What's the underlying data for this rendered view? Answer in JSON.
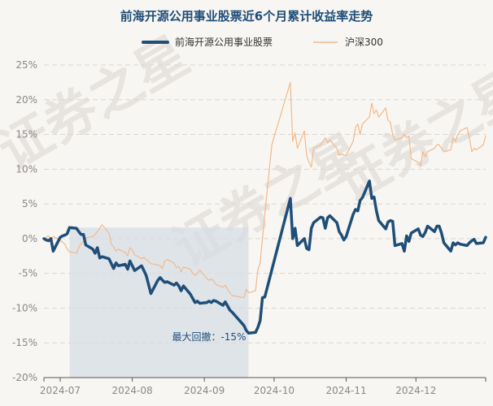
{
  "chart_data": {
    "type": "line",
    "title": "前海开源公用事业股票近6个月累计收益率走势",
    "legend": [
      {
        "name": "前海开源公用事业股票",
        "color": "#1f4e79"
      },
      {
        "name": "沪深300",
        "color": "#f2b98a"
      }
    ],
    "legend_position": "top-center",
    "grid": true,
    "ylim": [
      -20,
      25
    ],
    "yticks": [
      -20,
      -15,
      -10,
      -5,
      0,
      5,
      10,
      15,
      20,
      25
    ],
    "ytick_labels": [
      "-20%",
      "-15%",
      "-10%",
      "-5%",
      "0%",
      "5%",
      "10%",
      "15%",
      "20%",
      "25%"
    ],
    "x_range": [
      "2024-06-24",
      "2024-12-31"
    ],
    "x_tick_labels": [
      "2024-07",
      "2024-08",
      "2024-09",
      "2024-10",
      "2024-11",
      "2024-12"
    ],
    "x_tick_dates": [
      "2024-07-01",
      "2024-08-01",
      "2024-09-01",
      "2024-10-01",
      "2024-11-01",
      "2024-12-01"
    ],
    "series": [
      {
        "name": "前海开源公用事业股票",
        "color": "#1f4e79",
        "points": [
          [
            "2024-06-24",
            0.0
          ],
          [
            "2024-06-25",
            -0.2
          ],
          [
            "2024-06-26",
            -0.3
          ],
          [
            "2024-06-27",
            0.0
          ],
          [
            "2024-06-28",
            -1.8
          ],
          [
            "2024-07-01",
            0.2
          ],
          [
            "2024-07-02",
            0.4
          ],
          [
            "2024-07-03",
            0.5
          ],
          [
            "2024-07-04",
            0.7
          ],
          [
            "2024-07-05",
            1.6
          ],
          [
            "2024-07-08",
            1.5
          ],
          [
            "2024-07-09",
            1.0
          ],
          [
            "2024-07-10",
            0.6
          ],
          [
            "2024-07-11",
            0.6
          ],
          [
            "2024-07-12",
            -0.9
          ],
          [
            "2024-07-15",
            -1.5
          ],
          [
            "2024-07-16",
            -2.1
          ],
          [
            "2024-07-17",
            -1.3
          ],
          [
            "2024-07-18",
            -2.8
          ],
          [
            "2024-07-19",
            -2.6
          ],
          [
            "2024-07-22",
            -2.9
          ],
          [
            "2024-07-23",
            -3.6
          ],
          [
            "2024-07-24",
            -4.3
          ],
          [
            "2024-07-25",
            -3.5
          ],
          [
            "2024-07-26",
            -3.9
          ],
          [
            "2024-07-29",
            -3.7
          ],
          [
            "2024-07-30",
            -4.4
          ],
          [
            "2024-07-31",
            -3.2
          ],
          [
            "2024-08-01",
            -3.9
          ],
          [
            "2024-08-02",
            -4.6
          ],
          [
            "2024-08-05",
            -3.9
          ],
          [
            "2024-08-06",
            -4.6
          ],
          [
            "2024-08-07",
            -5.3
          ],
          [
            "2024-08-08",
            -6.6
          ],
          [
            "2024-08-09",
            -7.9
          ],
          [
            "2024-08-12",
            -6.0
          ],
          [
            "2024-08-13",
            -5.6
          ],
          [
            "2024-08-14",
            -6.0
          ],
          [
            "2024-08-15",
            -6.3
          ],
          [
            "2024-08-16",
            -6.2
          ],
          [
            "2024-08-19",
            -6.7
          ],
          [
            "2024-08-20",
            -6.4
          ],
          [
            "2024-08-21",
            -6.8
          ],
          [
            "2024-08-22",
            -7.5
          ],
          [
            "2024-08-23",
            -6.8
          ],
          [
            "2024-08-26",
            -8.0
          ],
          [
            "2024-08-27",
            -8.6
          ],
          [
            "2024-08-28",
            -9.2
          ],
          [
            "2024-08-29",
            -9.0
          ],
          [
            "2024-08-30",
            -9.3
          ],
          [
            "2024-09-02",
            -9.2
          ],
          [
            "2024-09-03",
            -9.0
          ],
          [
            "2024-09-04",
            -9.2
          ],
          [
            "2024-09-05",
            -8.9
          ],
          [
            "2024-09-06",
            -9.0
          ],
          [
            "2024-09-09",
            -9.6
          ],
          [
            "2024-09-10",
            -9.1
          ],
          [
            "2024-09-11",
            -9.7
          ],
          [
            "2024-09-12",
            -10.3
          ],
          [
            "2024-09-13",
            -10.6
          ],
          [
            "2024-09-18",
            -12.5
          ],
          [
            "2024-09-19",
            -13.2
          ],
          [
            "2024-09-20",
            -13.6
          ],
          [
            "2024-09-23",
            -13.5
          ],
          [
            "2024-09-24",
            -12.8
          ],
          [
            "2024-09-25",
            -11.8
          ],
          [
            "2024-09-26",
            -8.5
          ],
          [
            "2024-09-27",
            -8.4
          ],
          [
            "2024-09-30",
            -4.5
          ],
          [
            "2024-10-08",
            5.8
          ],
          [
            "2024-10-09",
            0.0
          ],
          [
            "2024-10-10",
            1.5
          ],
          [
            "2024-10-11",
            -1.0
          ],
          [
            "2024-10-14",
            0.0
          ],
          [
            "2024-10-15",
            -1.4
          ],
          [
            "2024-10-16",
            -1.6
          ],
          [
            "2024-10-17",
            1.5
          ],
          [
            "2024-10-18",
            2.3
          ],
          [
            "2024-10-21",
            3.1
          ],
          [
            "2024-10-22",
            3.0
          ],
          [
            "2024-10-23",
            1.5
          ],
          [
            "2024-10-24",
            3.0
          ],
          [
            "2024-10-25",
            3.3
          ],
          [
            "2024-10-28",
            2.3
          ],
          [
            "2024-10-29",
            1.0
          ],
          [
            "2024-10-30",
            0.5
          ],
          [
            "2024-10-31",
            -0.2
          ],
          [
            "2024-11-01",
            0.3
          ],
          [
            "2024-11-04",
            3.5
          ],
          [
            "2024-11-05",
            4.2
          ],
          [
            "2024-11-06",
            4.0
          ],
          [
            "2024-11-07",
            5.5
          ],
          [
            "2024-11-08",
            5.9
          ],
          [
            "2024-11-11",
            8.3
          ],
          [
            "2024-11-12",
            5.8
          ],
          [
            "2024-11-13",
            6.0
          ],
          [
            "2024-11-14",
            4.0
          ],
          [
            "2024-11-15",
            2.6
          ],
          [
            "2024-11-18",
            1.4
          ],
          [
            "2024-11-19",
            2.4
          ],
          [
            "2024-11-20",
            2.6
          ],
          [
            "2024-11-21",
            2.5
          ],
          [
            "2024-11-22",
            -1.0
          ],
          [
            "2024-11-25",
            -0.7
          ],
          [
            "2024-11-26",
            -1.8
          ],
          [
            "2024-11-27",
            0.4
          ],
          [
            "2024-11-28",
            -0.4
          ],
          [
            "2024-11-29",
            0.8
          ],
          [
            "2024-12-02",
            1.4
          ],
          [
            "2024-12-03",
            0.5
          ],
          [
            "2024-12-04",
            0.3
          ],
          [
            "2024-12-05",
            0.9
          ],
          [
            "2024-12-06",
            1.8
          ],
          [
            "2024-12-09",
            1.0
          ],
          [
            "2024-12-10",
            1.8
          ],
          [
            "2024-12-11",
            1.8
          ],
          [
            "2024-12-12",
            0.8
          ],
          [
            "2024-12-13",
            -0.6
          ],
          [
            "2024-12-16",
            -1.8
          ],
          [
            "2024-12-17",
            -0.6
          ],
          [
            "2024-12-18",
            -0.9
          ],
          [
            "2024-12-19",
            -0.6
          ],
          [
            "2024-12-20",
            -0.8
          ],
          [
            "2024-12-23",
            -1.0
          ],
          [
            "2024-12-24",
            -0.6
          ],
          [
            "2024-12-25",
            -0.3
          ],
          [
            "2024-12-26",
            -0.1
          ],
          [
            "2024-12-27",
            -0.7
          ],
          [
            "2024-12-30",
            -0.6
          ],
          [
            "2024-12-31",
            0.2
          ]
        ]
      },
      {
        "name": "沪深300",
        "color": "#f2b98a",
        "points": [
          [
            "2024-06-24",
            0.0
          ],
          [
            "2024-06-25",
            0.2
          ],
          [
            "2024-06-26",
            0.4
          ],
          [
            "2024-06-27",
            0.0
          ],
          [
            "2024-06-28",
            0.3
          ],
          [
            "2024-07-01",
            -0.2
          ],
          [
            "2024-07-02",
            -0.5
          ],
          [
            "2024-07-03",
            -0.8
          ],
          [
            "2024-07-04",
            -1.5
          ],
          [
            "2024-07-05",
            -1.9
          ],
          [
            "2024-07-08",
            -2.1
          ],
          [
            "2024-07-09",
            -1.2
          ],
          [
            "2024-07-10",
            -0.7
          ],
          [
            "2024-07-11",
            -0.4
          ],
          [
            "2024-07-12",
            0.1
          ],
          [
            "2024-07-15",
            0.3
          ],
          [
            "2024-07-16",
            0.6
          ],
          [
            "2024-07-17",
            1.0
          ],
          [
            "2024-07-18",
            1.5
          ],
          [
            "2024-07-19",
            2.0
          ],
          [
            "2024-07-22",
            0.8
          ],
          [
            "2024-07-23",
            -0.8
          ],
          [
            "2024-07-24",
            -1.2
          ],
          [
            "2024-07-25",
            -1.8
          ],
          [
            "2024-07-26",
            -1.5
          ],
          [
            "2024-07-29",
            -2.0
          ],
          [
            "2024-07-30",
            -2.5
          ],
          [
            "2024-07-31",
            -1.3
          ],
          [
            "2024-08-01",
            -1.6
          ],
          [
            "2024-08-02",
            -2.3
          ],
          [
            "2024-08-05",
            -2.9
          ],
          [
            "2024-08-06",
            -2.7
          ],
          [
            "2024-08-07",
            -3.0
          ],
          [
            "2024-08-08",
            -3.3
          ],
          [
            "2024-08-09",
            -3.6
          ],
          [
            "2024-08-12",
            -3.8
          ],
          [
            "2024-08-13",
            -3.9
          ],
          [
            "2024-08-14",
            -4.3
          ],
          [
            "2024-08-15",
            -3.2
          ],
          [
            "2024-08-16",
            -3.0
          ],
          [
            "2024-08-19",
            -3.5
          ],
          [
            "2024-08-20",
            -4.2
          ],
          [
            "2024-08-21",
            -4.0
          ],
          [
            "2024-08-22",
            -4.8
          ],
          [
            "2024-08-23",
            -4.1
          ],
          [
            "2024-08-26",
            -4.4
          ],
          [
            "2024-08-27",
            -5.0
          ],
          [
            "2024-08-28",
            -5.3
          ],
          [
            "2024-08-29",
            -5.0
          ],
          [
            "2024-08-30",
            -4.5
          ],
          [
            "2024-09-02",
            -5.7
          ],
          [
            "2024-09-03",
            -6.0
          ],
          [
            "2024-09-04",
            -5.8
          ],
          [
            "2024-09-05",
            -6.1
          ],
          [
            "2024-09-06",
            -6.6
          ],
          [
            "2024-09-09",
            -7.0
          ],
          [
            "2024-09-10",
            -6.7
          ],
          [
            "2024-09-11",
            -7.3
          ],
          [
            "2024-09-12",
            -7.8
          ],
          [
            "2024-09-13",
            -8.2
          ],
          [
            "2024-09-18",
            -8.5
          ],
          [
            "2024-09-19",
            -7.3
          ],
          [
            "2024-09-20",
            -7.8
          ],
          [
            "2024-09-23",
            -7.5
          ],
          [
            "2024-09-24",
            -4.5
          ],
          [
            "2024-09-25",
            -3.5
          ],
          [
            "2024-09-26",
            0.0
          ],
          [
            "2024-09-27",
            3.5
          ],
          [
            "2024-09-30",
            13.5
          ],
          [
            "2024-10-08",
            22.5
          ],
          [
            "2024-10-09",
            14.0
          ],
          [
            "2024-10-10",
            15.2
          ],
          [
            "2024-10-11",
            13.0
          ],
          [
            "2024-10-14",
            15.5
          ],
          [
            "2024-10-15",
            12.0
          ],
          [
            "2024-10-16",
            11.0
          ],
          [
            "2024-10-17",
            10.3
          ],
          [
            "2024-10-18",
            13.0
          ],
          [
            "2024-10-21",
            13.5
          ],
          [
            "2024-10-22",
            14.0
          ],
          [
            "2024-10-23",
            14.5
          ],
          [
            "2024-10-24",
            13.8
          ],
          [
            "2024-10-25",
            14.2
          ],
          [
            "2024-10-28",
            13.0
          ],
          [
            "2024-10-29",
            12.0
          ],
          [
            "2024-10-30",
            12.2
          ],
          [
            "2024-10-31",
            12.0
          ],
          [
            "2024-11-01",
            12.0
          ],
          [
            "2024-11-04",
            14.0
          ],
          [
            "2024-11-05",
            16.0
          ],
          [
            "2024-11-06",
            16.5
          ],
          [
            "2024-11-07",
            15.0
          ],
          [
            "2024-11-08",
            16.5
          ],
          [
            "2024-11-11",
            17.5
          ],
          [
            "2024-11-12",
            19.5
          ],
          [
            "2024-11-13",
            18.0
          ],
          [
            "2024-11-14",
            18.5
          ],
          [
            "2024-11-15",
            17.5
          ],
          [
            "2024-11-18",
            18.8
          ],
          [
            "2024-11-19",
            17.0
          ],
          [
            "2024-11-20",
            16.8
          ],
          [
            "2024-11-21",
            15.0
          ],
          [
            "2024-11-22",
            14.2
          ],
          [
            "2024-11-25",
            14.5
          ],
          [
            "2024-11-26",
            15.0
          ],
          [
            "2024-11-27",
            14.5
          ],
          [
            "2024-11-28",
            14.8
          ],
          [
            "2024-11-29",
            11.5
          ],
          [
            "2024-12-02",
            11.0
          ],
          [
            "2024-12-03",
            10.5
          ],
          [
            "2024-12-04",
            12.5
          ],
          [
            "2024-12-05",
            11.8
          ],
          [
            "2024-12-06",
            12.5
          ],
          [
            "2024-12-09",
            13.0
          ],
          [
            "2024-12-10",
            13.5
          ],
          [
            "2024-12-11",
            13.5
          ],
          [
            "2024-12-12",
            13.0
          ],
          [
            "2024-12-13",
            12.5
          ],
          [
            "2024-12-16",
            12.8
          ],
          [
            "2024-12-17",
            14.5
          ],
          [
            "2024-12-18",
            14.0
          ],
          [
            "2024-12-19",
            15.0
          ],
          [
            "2024-12-20",
            15.5
          ],
          [
            "2024-12-23",
            16.0
          ],
          [
            "2024-12-24",
            14.5
          ],
          [
            "2024-12-25",
            12.5
          ],
          [
            "2024-12-26",
            13.0
          ],
          [
            "2024-12-27",
            12.8
          ],
          [
            "2024-12-30",
            13.5
          ],
          [
            "2024-12-31",
            14.8
          ]
        ]
      }
    ],
    "annotations": [
      {
        "text": "最大回撤：-15%",
        "shaded_region": {
          "from": "2024-07-05",
          "to": "2024-09-20",
          "y_from": -20,
          "y_to": 1.6
        },
        "color": "#d7dee5"
      }
    ]
  },
  "watermark": {
    "text_a": "证券之星",
    "text_b": "证券之星",
    "text_c": "证券之星"
  }
}
